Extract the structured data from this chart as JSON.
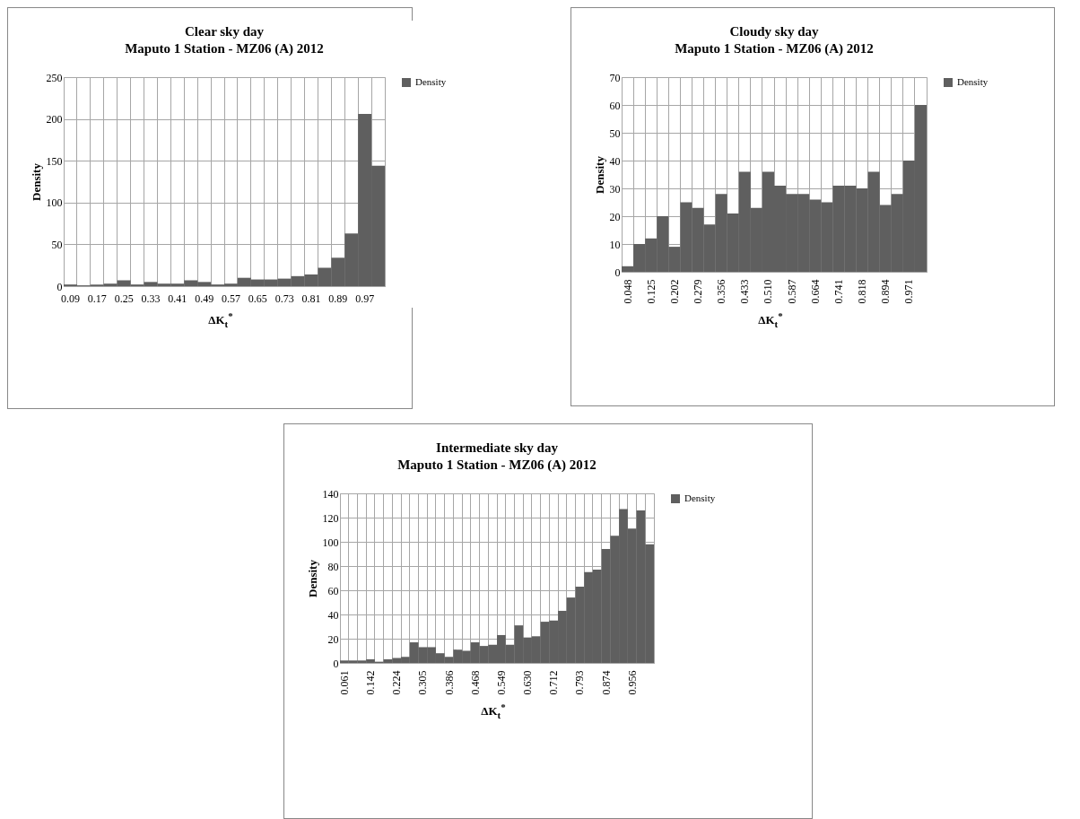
{
  "chart_data": [
    {
      "type": "bar",
      "title": "Clear sky day",
      "subtitle": "Maputo 1 Station - MZ06 (A) 2012",
      "xlabel": "ΔK$_{t}$$^{*}$",
      "ylabel": "Density",
      "categories": [
        "0.09",
        null,
        "0.17",
        null,
        "0.25",
        null,
        "0.33",
        null,
        "0.41",
        null,
        "0.49",
        null,
        "0.57",
        null,
        "0.65",
        null,
        "0.73",
        null,
        "0.81",
        null,
        "0.89",
        null,
        "0.97",
        null
      ],
      "series": [
        {
          "name": "Density",
          "color": "#5f5f5f",
          "values": [
            2,
            1,
            2,
            3,
            7,
            2,
            5,
            3,
            3,
            7,
            5,
            2,
            3,
            10,
            8,
            8,
            9,
            12,
            14,
            22,
            34,
            63,
            206,
            144
          ]
        }
      ],
      "ylim": [
        0,
        250
      ],
      "yticks": [
        0,
        50,
        100,
        150,
        200,
        250
      ],
      "grid": true,
      "legend": "right"
    },
    {
      "type": "bar",
      "title": "Cloudy sky day",
      "subtitle": "Maputo 1 Station - MZ06 (A) 2012",
      "xlabel": "ΔK$_{t}$$^{*}$",
      "ylabel": "Density",
      "categories": [
        "0.048",
        null,
        "0.125",
        null,
        "0.202",
        null,
        "0.279",
        null,
        "0.356",
        null,
        "0.433",
        null,
        "0.510",
        null,
        "0.587",
        null,
        "0.664",
        null,
        "0.741",
        null,
        "0.818",
        null,
        "0.894",
        null,
        "0.971",
        null
      ],
      "series": [
        {
          "name": "Density",
          "color": "#5f5f5f",
          "values": [
            2,
            10,
            12,
            20,
            9,
            25,
            23,
            17,
            28,
            21,
            36,
            23,
            36,
            31,
            28,
            28,
            26,
            25,
            31,
            31,
            30,
            36,
            24,
            28,
            40,
            60
          ]
        }
      ],
      "ylim": [
        0,
        70
      ],
      "yticks": [
        0,
        10,
        20,
        30,
        40,
        50,
        60,
        70
      ],
      "grid": true,
      "legend": "right"
    },
    {
      "type": "bar",
      "title": "Intermediate sky day",
      "subtitle": "Maputo 1 Station - MZ06 (A) 2012",
      "xlabel": "ΔK$_{t}$$^{*}$",
      "ylabel": "Density",
      "categories": [
        "0.061",
        null,
        null,
        "0.142",
        null,
        null,
        "0.224",
        null,
        null,
        "0.305",
        null,
        null,
        "0.386",
        null,
        null,
        "0.468",
        null,
        null,
        "0.549",
        null,
        null,
        "0.630",
        null,
        null,
        "0.712",
        null,
        null,
        "0.793",
        null,
        null,
        "0.874",
        null,
        null,
        "0.956",
        null,
        null
      ],
      "series": [
        {
          "name": "Density",
          "color": "#5f5f5f",
          "values": [
            2,
            2,
            2,
            3,
            1,
            3,
            4,
            5,
            17,
            13,
            13,
            8,
            5,
            11,
            10,
            17,
            14,
            15,
            23,
            15,
            31,
            21,
            22,
            34,
            35,
            43,
            54,
            63,
            75,
            77,
            94,
            105,
            127,
            111,
            126,
            98
          ]
        }
      ],
      "ylim": [
        0,
        140
      ],
      "yticks": [
        0,
        20,
        40,
        60,
        80,
        100,
        120,
        140
      ],
      "grid": true,
      "legend": "right"
    }
  ]
}
